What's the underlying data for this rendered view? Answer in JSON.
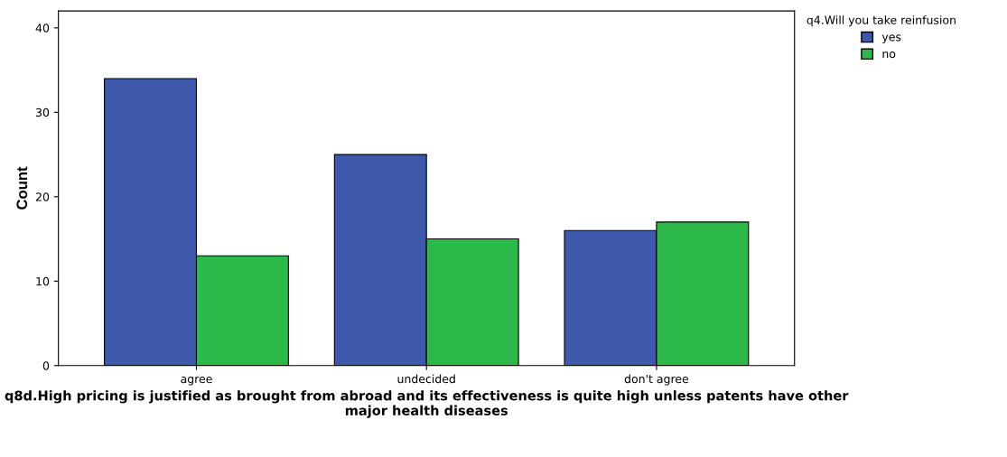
{
  "chart_data": {
    "type": "bar",
    "ylabel": "Count",
    "xlabel": "q8d.High pricing is justified as brought from abroad and its effectiveness is quite high unless patents have other major health diseases",
    "categories": [
      "agree",
      "undecided",
      "don't agree"
    ],
    "series": [
      {
        "name": "yes",
        "color": "#3e58ac",
        "values": [
          34,
          25,
          16
        ]
      },
      {
        "name": "no",
        "color": "#2db84a",
        "values": [
          13,
          15,
          17
        ]
      }
    ],
    "legend_title": "q4.Will you take reinfusion",
    "legend": "top right",
    "ylim": [
      0,
      42
    ],
    "yticks": [
      0,
      10,
      20,
      30,
      40
    ],
    "grid": false
  }
}
